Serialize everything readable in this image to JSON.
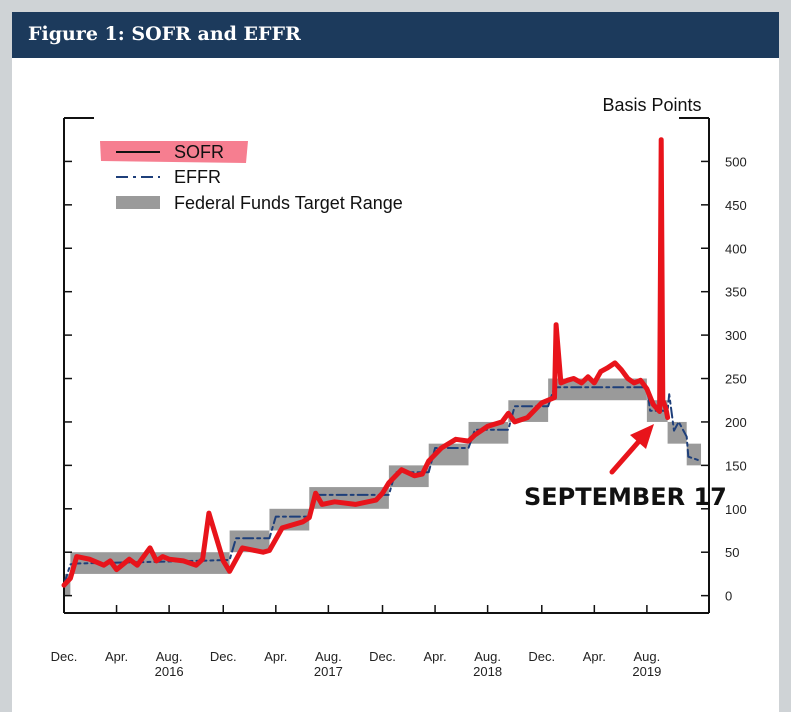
{
  "figure": {
    "title": "Figure 1: SOFR and EFFR"
  },
  "chart_data": {
    "type": "line",
    "title": "",
    "ylabel": "Basis Points",
    "xlabel": "",
    "ylim": [
      -20,
      550
    ],
    "xlim": [
      2015.92,
      2019.97
    ],
    "y_ticks": [
      0,
      50,
      100,
      150,
      200,
      250,
      300,
      350,
      400,
      450,
      500
    ],
    "x_ticks": [
      {
        "x": 2015.92,
        "label": "Dec.",
        "year": ""
      },
      {
        "x": 2016.25,
        "label": "Apr.",
        "year": ""
      },
      {
        "x": 2016.58,
        "label": "Aug.",
        "year": "2016"
      },
      {
        "x": 2016.92,
        "label": "Dec.",
        "year": ""
      },
      {
        "x": 2017.25,
        "label": "Apr.",
        "year": ""
      },
      {
        "x": 2017.58,
        "label": "Aug.",
        "year": "2017"
      },
      {
        "x": 2017.92,
        "label": "Dec.",
        "year": ""
      },
      {
        "x": 2018.25,
        "label": "Apr.",
        "year": ""
      },
      {
        "x": 2018.58,
        "label": "Aug.",
        "year": "2018"
      },
      {
        "x": 2018.92,
        "label": "Dec.",
        "year": ""
      },
      {
        "x": 2019.25,
        "label": "Apr.",
        "year": ""
      },
      {
        "x": 2019.58,
        "label": "Aug.",
        "year": "2019"
      }
    ],
    "legend": {
      "position": "top-left",
      "entries": [
        "SOFR",
        "EFFR",
        "Federal Funds Target Range"
      ]
    },
    "target_range": [
      {
        "x0": 2015.92,
        "x1": 2015.96,
        "lo": 0,
        "hi": 25
      },
      {
        "x0": 2015.96,
        "x1": 2016.96,
        "lo": 25,
        "hi": 50
      },
      {
        "x0": 2016.96,
        "x1": 2017.21,
        "lo": 50,
        "hi": 75
      },
      {
        "x0": 2017.21,
        "x1": 2017.46,
        "lo": 75,
        "hi": 100
      },
      {
        "x0": 2017.46,
        "x1": 2017.96,
        "lo": 100,
        "hi": 125
      },
      {
        "x0": 2017.96,
        "x1": 2018.21,
        "lo": 125,
        "hi": 150
      },
      {
        "x0": 2018.21,
        "x1": 2018.46,
        "lo": 150,
        "hi": 175
      },
      {
        "x0": 2018.46,
        "x1": 2018.71,
        "lo": 175,
        "hi": 200
      },
      {
        "x0": 2018.71,
        "x1": 2018.96,
        "lo": 200,
        "hi": 225
      },
      {
        "x0": 2018.96,
        "x1": 2019.58,
        "lo": 225,
        "hi": 250
      },
      {
        "x0": 2019.58,
        "x1": 2019.71,
        "lo": 200,
        "hi": 225
      },
      {
        "x0": 2019.71,
        "x1": 2019.83,
        "lo": 175,
        "hi": 200
      },
      {
        "x0": 2019.83,
        "x1": 2019.92,
        "lo": 150,
        "hi": 175
      }
    ],
    "series": [
      {
        "name": "SOFR",
        "color": "#e8141b",
        "x": [
          2015.92,
          2015.96,
          2016.0,
          2016.08,
          2016.17,
          2016.21,
          2016.25,
          2016.33,
          2016.38,
          2016.46,
          2016.5,
          2016.54,
          2016.58,
          2016.67,
          2016.75,
          2016.79,
          2016.83,
          2016.92,
          2016.96,
          2017.04,
          2017.17,
          2017.21,
          2017.29,
          2017.42,
          2017.46,
          2017.5,
          2017.54,
          2017.62,
          2017.75,
          2017.88,
          2017.92,
          2017.96,
          2018.04,
          2018.12,
          2018.17,
          2018.21,
          2018.29,
          2018.38,
          2018.46,
          2018.5,
          2018.58,
          2018.67,
          2018.71,
          2018.75,
          2018.83,
          2018.92,
          2018.96,
          2019.0,
          2019.01,
          2019.04,
          2019.08,
          2019.12,
          2019.17,
          2019.21,
          2019.25,
          2019.29,
          2019.33,
          2019.38,
          2019.42,
          2019.46,
          2019.5,
          2019.54,
          2019.58,
          2019.62,
          2019.66,
          2019.67,
          2019.68,
          2019.7,
          2019.71
        ],
        "y": [
          12,
          20,
          45,
          42,
          35,
          40,
          30,
          42,
          35,
          55,
          40,
          45,
          42,
          40,
          35,
          42,
          95,
          40,
          28,
          55,
          50,
          52,
          78,
          85,
          90,
          118,
          105,
          108,
          105,
          110,
          118,
          130,
          145,
          138,
          140,
          155,
          170,
          180,
          178,
          185,
          195,
          200,
          210,
          200,
          205,
          222,
          225,
          228,
          312,
          245,
          248,
          250,
          245,
          252,
          245,
          258,
          262,
          268,
          260,
          250,
          245,
          248,
          238,
          220,
          212,
          525,
          225,
          215,
          205
        ]
      },
      {
        "name": "EFFR",
        "color": "#1e3f7a",
        "x": [
          2015.92,
          2015.96,
          2016.0,
          2016.5,
          2016.96,
          2017.0,
          2017.21,
          2017.25,
          2017.46,
          2017.5,
          2017.96,
          2018.0,
          2018.21,
          2018.25,
          2018.46,
          2018.5,
          2018.71,
          2018.75,
          2018.96,
          2019.0,
          2019.58,
          2019.6,
          2019.71,
          2019.72,
          2019.75,
          2019.78,
          2019.83,
          2019.84,
          2019.92
        ],
        "y": [
          13,
          36,
          37,
          39,
          41,
          66,
          66,
          91,
          91,
          116,
          116,
          142,
          142,
          170,
          170,
          191,
          191,
          218,
          218,
          240,
          240,
          213,
          213,
          232,
          190,
          200,
          183,
          160,
          155
        ]
      }
    ],
    "annotations": [
      {
        "text": "SEPTEMBER 17",
        "x": 2019.7,
        "y": 210
      }
    ]
  }
}
